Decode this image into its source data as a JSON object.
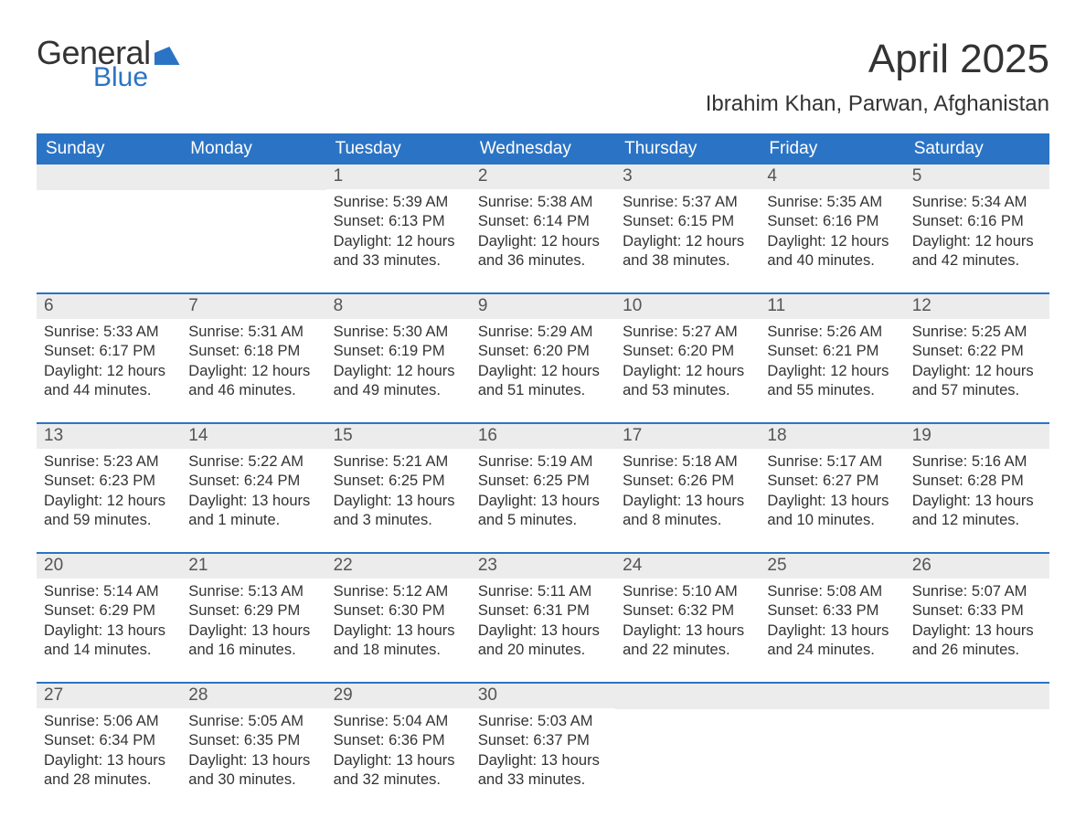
{
  "logo": {
    "word1": "General",
    "word2": "Blue"
  },
  "title": "April 2025",
  "subtitle": "Ibrahim Khan, Parwan, Afghanistan",
  "colors": {
    "brand": "#2b74c5",
    "header_text": "#ffffff",
    "daynum_bg": "#ececec",
    "text": "#333333",
    "background": "#ffffff"
  },
  "typography": {
    "title_fontsize": 44,
    "subtitle_fontsize": 24,
    "dow_fontsize": 19,
    "daynum_fontsize": 19,
    "body_fontsize": 16.5
  },
  "days_of_week": [
    "Sunday",
    "Monday",
    "Tuesday",
    "Wednesday",
    "Thursday",
    "Friday",
    "Saturday"
  ],
  "weeks": [
    [
      null,
      null,
      {
        "n": "1",
        "sunrise": "5:39 AM",
        "sunset": "6:13 PM",
        "daylight": "12 hours and 33 minutes."
      },
      {
        "n": "2",
        "sunrise": "5:38 AM",
        "sunset": "6:14 PM",
        "daylight": "12 hours and 36 minutes."
      },
      {
        "n": "3",
        "sunrise": "5:37 AM",
        "sunset": "6:15 PM",
        "daylight": "12 hours and 38 minutes."
      },
      {
        "n": "4",
        "sunrise": "5:35 AM",
        "sunset": "6:16 PM",
        "daylight": "12 hours and 40 minutes."
      },
      {
        "n": "5",
        "sunrise": "5:34 AM",
        "sunset": "6:16 PM",
        "daylight": "12 hours and 42 minutes."
      }
    ],
    [
      {
        "n": "6",
        "sunrise": "5:33 AM",
        "sunset": "6:17 PM",
        "daylight": "12 hours and 44 minutes."
      },
      {
        "n": "7",
        "sunrise": "5:31 AM",
        "sunset": "6:18 PM",
        "daylight": "12 hours and 46 minutes."
      },
      {
        "n": "8",
        "sunrise": "5:30 AM",
        "sunset": "6:19 PM",
        "daylight": "12 hours and 49 minutes."
      },
      {
        "n": "9",
        "sunrise": "5:29 AM",
        "sunset": "6:20 PM",
        "daylight": "12 hours and 51 minutes."
      },
      {
        "n": "10",
        "sunrise": "5:27 AM",
        "sunset": "6:20 PM",
        "daylight": "12 hours and 53 minutes."
      },
      {
        "n": "11",
        "sunrise": "5:26 AM",
        "sunset": "6:21 PM",
        "daylight": "12 hours and 55 minutes."
      },
      {
        "n": "12",
        "sunrise": "5:25 AM",
        "sunset": "6:22 PM",
        "daylight": "12 hours and 57 minutes."
      }
    ],
    [
      {
        "n": "13",
        "sunrise": "5:23 AM",
        "sunset": "6:23 PM",
        "daylight": "12 hours and 59 minutes."
      },
      {
        "n": "14",
        "sunrise": "5:22 AM",
        "sunset": "6:24 PM",
        "daylight": "13 hours and 1 minute."
      },
      {
        "n": "15",
        "sunrise": "5:21 AM",
        "sunset": "6:25 PM",
        "daylight": "13 hours and 3 minutes."
      },
      {
        "n": "16",
        "sunrise": "5:19 AM",
        "sunset": "6:25 PM",
        "daylight": "13 hours and 5 minutes."
      },
      {
        "n": "17",
        "sunrise": "5:18 AM",
        "sunset": "6:26 PM",
        "daylight": "13 hours and 8 minutes."
      },
      {
        "n": "18",
        "sunrise": "5:17 AM",
        "sunset": "6:27 PM",
        "daylight": "13 hours and 10 minutes."
      },
      {
        "n": "19",
        "sunrise": "5:16 AM",
        "sunset": "6:28 PM",
        "daylight": "13 hours and 12 minutes."
      }
    ],
    [
      {
        "n": "20",
        "sunrise": "5:14 AM",
        "sunset": "6:29 PM",
        "daylight": "13 hours and 14 minutes."
      },
      {
        "n": "21",
        "sunrise": "5:13 AM",
        "sunset": "6:29 PM",
        "daylight": "13 hours and 16 minutes."
      },
      {
        "n": "22",
        "sunrise": "5:12 AM",
        "sunset": "6:30 PM",
        "daylight": "13 hours and 18 minutes."
      },
      {
        "n": "23",
        "sunrise": "5:11 AM",
        "sunset": "6:31 PM",
        "daylight": "13 hours and 20 minutes."
      },
      {
        "n": "24",
        "sunrise": "5:10 AM",
        "sunset": "6:32 PM",
        "daylight": "13 hours and 22 minutes."
      },
      {
        "n": "25",
        "sunrise": "5:08 AM",
        "sunset": "6:33 PM",
        "daylight": "13 hours and 24 minutes."
      },
      {
        "n": "26",
        "sunrise": "5:07 AM",
        "sunset": "6:33 PM",
        "daylight": "13 hours and 26 minutes."
      }
    ],
    [
      {
        "n": "27",
        "sunrise": "5:06 AM",
        "sunset": "6:34 PM",
        "daylight": "13 hours and 28 minutes."
      },
      {
        "n": "28",
        "sunrise": "5:05 AM",
        "sunset": "6:35 PM",
        "daylight": "13 hours and 30 minutes."
      },
      {
        "n": "29",
        "sunrise": "5:04 AM",
        "sunset": "6:36 PM",
        "daylight": "13 hours and 32 minutes."
      },
      {
        "n": "30",
        "sunrise": "5:03 AM",
        "sunset": "6:37 PM",
        "daylight": "13 hours and 33 minutes."
      },
      null,
      null,
      null
    ]
  ],
  "labels": {
    "sunrise": "Sunrise: ",
    "sunset": "Sunset: ",
    "daylight": "Daylight: "
  }
}
